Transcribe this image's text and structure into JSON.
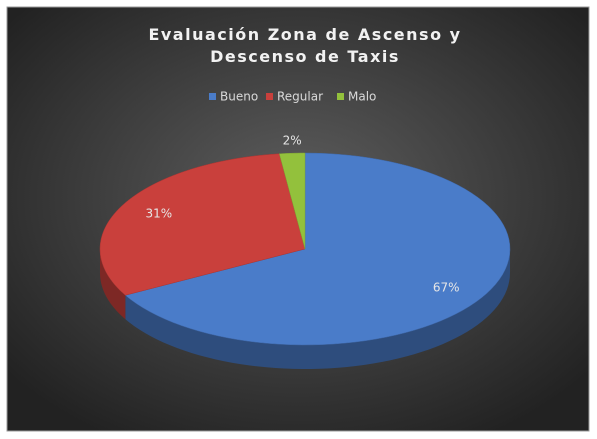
{
  "chart_data": {
    "type": "pie",
    "title": "Evaluación Zona de Ascenso y Descenso de Taxis",
    "categories": [
      "Bueno",
      "Regular",
      "Malo"
    ],
    "values": [
      67,
      31,
      2
    ],
    "value_labels": [
      "67%",
      "31%",
      "2%"
    ],
    "colors": [
      "#4a7cc9",
      "#c9403c",
      "#93c13c"
    ],
    "legend": "top"
  }
}
